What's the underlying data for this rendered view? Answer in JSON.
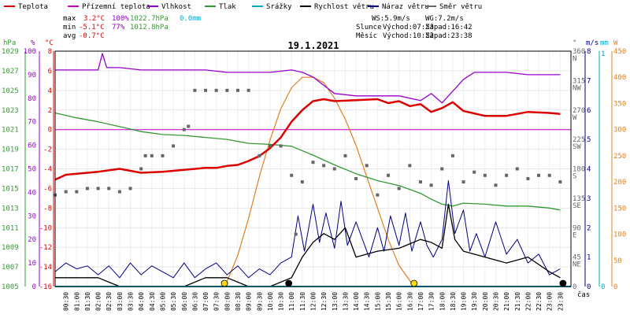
{
  "title": "19.1.2021",
  "x_axis_label": "čas",
  "legend": [
    {
      "label": "Teplota",
      "color": "#dd0000"
    },
    {
      "label": "Přízemní teplota",
      "color": "#cc00cc"
    },
    {
      "label": "Vlhkost",
      "color": "#9900cc"
    },
    {
      "label": "Tlak",
      "color": "#339933"
    },
    {
      "label": "Srážky",
      "color": "#00aacc"
    },
    {
      "label": "Rychlost větru",
      "color": "#000000"
    },
    {
      "label": "Náraz větru",
      "color": "#000080"
    },
    {
      "label": "Směr větru",
      "color": "#666666"
    }
  ],
  "stats": {
    "max": {
      "label": "max",
      "temp": "3.2°C",
      "hum": "100%",
      "press": "1022.7hPa",
      "rain": "0.0mm"
    },
    "min": {
      "label": "min",
      "temp": "-5.1°C",
      "hum": "77%",
      "press": "1012.8hPa"
    },
    "avg": {
      "label": "avg",
      "temp": "-0.7°C"
    }
  },
  "wind_summary": {
    "ws": "WS:5.9m/s",
    "wg": "WG:7.2m/s"
  },
  "sun": {
    "label": "Slunce",
    "rise": "Východ:07:53",
    "set": "Západ:16:42"
  },
  "moon": {
    "label": "Měsíc",
    "rise": "Východ:10:52",
    "set": "Západ:23:38"
  },
  "axes": {
    "left_units": [
      "hPa",
      "%",
      "°C"
    ],
    "right_units": [
      "°",
      "m/s",
      "mm",
      "W"
    ],
    "pressure_ticks": [
      "1029",
      "1027",
      "1025",
      "1023",
      "1021",
      "1019",
      "1017",
      "1015",
      "1013",
      "1011",
      "1009",
      "1007",
      "1005"
    ],
    "humidity_ticks": [
      "100",
      "90",
      "80",
      "70",
      "60",
      "50",
      "40",
      "30",
      "20",
      "10",
      "0"
    ],
    "temp_ticks": [
      "8",
      "6",
      "4",
      "2",
      "0",
      "-2",
      "-4",
      "-6",
      "-8",
      "-10",
      "-12",
      "-14",
      "-16"
    ],
    "direction_ticks": [
      {
        "deg": "360",
        "dir": "N"
      },
      {
        "deg": "315",
        "dir": "NW"
      },
      {
        "deg": "270",
        "dir": "W"
      },
      {
        "deg": "225",
        "dir": "SW"
      },
      {
        "deg": "180",
        "dir": "S"
      },
      {
        "deg": "135",
        "dir": "SE"
      },
      {
        "deg": "90",
        "dir": "E"
      },
      {
        "deg": "45",
        "dir": "NE"
      },
      {
        "deg": "0",
        "dir": ""
      }
    ],
    "wind_ticks": [
      "8",
      "7",
      "6",
      "5",
      "4",
      "3",
      "2",
      "1",
      "0"
    ],
    "rain_ticks": [
      "1",
      "0"
    ],
    "solar_ticks": [
      "450",
      "400",
      "350",
      "300",
      "250",
      "200",
      "150",
      "100",
      "50",
      "0"
    ],
    "time_ticks": [
      "00:30",
      "01:00",
      "01:30",
      "02:00",
      "02:30",
      "03:00",
      "03:30",
      "04:00",
      "04:30",
      "05:00",
      "05:30",
      "06:00",
      "06:30",
      "07:00",
      "07:30",
      "08:00",
      "08:30",
      "09:00",
      "09:30",
      "10:00",
      "10:30",
      "11:00",
      "11:30",
      "12:00",
      "12:30",
      "13:00",
      "13:30",
      "14:00",
      "14:30",
      "15:00",
      "15:30",
      "16:00",
      "16:30",
      "17:00",
      "17:30",
      "18:00",
      "18:30",
      "19:00",
      "19:30",
      "20:00",
      "20:30",
      "21:00",
      "21:30",
      "22:00",
      "22:30",
      "23:00",
      "23:30"
    ]
  },
  "chart_data": {
    "type": "line",
    "title": "19.1.2021",
    "x_unit": "hours",
    "xlim": [
      0,
      24
    ],
    "temp_ylim": [
      -16,
      8
    ],
    "humidity_ylim": [
      0,
      100
    ],
    "pressure_ylim": [
      1005,
      1029
    ],
    "wind_ylim": [
      0,
      8
    ],
    "direction_ylim": [
      0,
      360
    ],
    "solar_ylim": [
      0,
      450
    ],
    "series": [
      {
        "name": "Teplota",
        "axis": "temp",
        "color": "#dd0000",
        "x": [
          0,
          0.5,
          1,
          2,
          3,
          4,
          5,
          6,
          7,
          7.5,
          8,
          8.5,
          9,
          9.5,
          10,
          10.5,
          11,
          11.5,
          12,
          12.5,
          13,
          14,
          15,
          15.5,
          16,
          16.5,
          17,
          17.5,
          18,
          18.5,
          19,
          20,
          21,
          22,
          23,
          23.5
        ],
        "y": [
          -5.1,
          -4.6,
          -4.5,
          -4.3,
          -4.0,
          -4.4,
          -4.3,
          -4.1,
          -3.9,
          -3.9,
          -3.7,
          -3.6,
          -3.2,
          -2.7,
          -1.9,
          -0.8,
          0.8,
          2.0,
          2.9,
          3.1,
          2.9,
          3.0,
          3.1,
          2.7,
          2.9,
          2.4,
          2.6,
          1.8,
          2.2,
          2.8,
          1.9,
          1.4,
          1.4,
          1.8,
          1.7,
          1.6
        ]
      },
      {
        "name": "Přízemní teplota",
        "axis": "temp",
        "color": "#cc00cc",
        "x": [
          0,
          24
        ],
        "y": [
          0,
          0
        ]
      },
      {
        "name": "Vlhkost",
        "axis": "humidity",
        "color": "#9900cc",
        "x": [
          0,
          1,
          2,
          2.2,
          2.4,
          3,
          4,
          5,
          6,
          7,
          8,
          9,
          10,
          11,
          11.5,
          12,
          13,
          14,
          15,
          16,
          17,
          17.5,
          18,
          18.5,
          19,
          19.5,
          20,
          21,
          22,
          23,
          23.5
        ],
        "y": [
          92,
          92,
          92,
          99,
          93,
          93,
          92,
          92,
          92,
          92,
          91,
          91,
          91,
          92,
          91,
          89,
          82,
          81,
          81,
          81,
          79,
          82,
          78,
          83,
          88,
          91,
          91,
          91,
          90,
          90,
          90
        ]
      },
      {
        "name": "Tlak",
        "axis": "pressure",
        "color": "#339933",
        "x": [
          0,
          1,
          2,
          3,
          4,
          5,
          6,
          7,
          8,
          9,
          10,
          11,
          12,
          13,
          14,
          15,
          16,
          17,
          17.5,
          18,
          18.5,
          19,
          20,
          21,
          22,
          23,
          23.5
        ],
        "y": [
          1022.7,
          1022.2,
          1021.8,
          1021.3,
          1020.8,
          1020.5,
          1020.4,
          1020.2,
          1020.0,
          1019.6,
          1019.5,
          1019.3,
          1018.4,
          1017.4,
          1016.5,
          1015.8,
          1015.3,
          1014.5,
          1013.9,
          1013.4,
          1013.2,
          1013.5,
          1013.4,
          1013.2,
          1013.2,
          1013.0,
          1012.8
        ]
      },
      {
        "name": "Srážky",
        "axis": "rain",
        "color": "#00aacc",
        "x": [
          0,
          24
        ],
        "y": [
          0,
          0
        ]
      },
      {
        "name": "Rychlost větru",
        "axis": "wind",
        "color": "#000000",
        "x": [
          0,
          1,
          2,
          3,
          4,
          5,
          6,
          7,
          8,
          9,
          10,
          11,
          11.5,
          12,
          12.5,
          13,
          13.5,
          14,
          15,
          16,
          17,
          17.5,
          18,
          18.3,
          18.6,
          19,
          20,
          21,
          22,
          23,
          23.5
        ],
        "y": [
          0.3,
          0.3,
          0.3,
          0.0,
          0.0,
          0.0,
          0.0,
          0.3,
          0.3,
          0.0,
          0.0,
          0.3,
          1.0,
          1.5,
          1.8,
          1.6,
          2.0,
          1.0,
          1.2,
          1.3,
          1.6,
          1.5,
          1.3,
          2.8,
          1.6,
          1.2,
          1.0,
          0.8,
          1.0,
          0.5,
          0.3
        ]
      },
      {
        "name": "Náraz větru",
        "axis": "wind",
        "color": "#000080",
        "x": [
          0,
          0.5,
          1,
          1.5,
          2,
          2.5,
          3,
          3.5,
          4,
          4.5,
          5,
          5.5,
          6,
          6.5,
          7,
          7.5,
          8,
          8.5,
          9,
          9.5,
          10,
          10.5,
          11,
          11.3,
          11.6,
          12,
          12.3,
          12.6,
          13,
          13.3,
          13.6,
          14,
          14.3,
          14.6,
          15,
          15.3,
          15.6,
          16,
          16.3,
          16.6,
          17,
          17.3,
          17.6,
          18,
          18.3,
          18.6,
          19,
          19.3,
          19.6,
          20,
          20.5,
          21,
          21.5,
          22,
          22.5,
          23,
          23.5
        ],
        "y": [
          0.5,
          0.8,
          0.6,
          0.7,
          0.4,
          0.7,
          0.3,
          0.8,
          0.4,
          0.7,
          0.5,
          0.3,
          0.8,
          0.3,
          0.6,
          0.8,
          0.4,
          0.7,
          0.3,
          0.6,
          0.4,
          0.8,
          1.0,
          2.4,
          1.2,
          2.8,
          1.5,
          2.5,
          1.3,
          2.9,
          1.4,
          2.2,
          1.6,
          1.0,
          2.0,
          1.2,
          2.4,
          1.4,
          2.5,
          1.2,
          2.2,
          1.4,
          1.0,
          1.6,
          3.6,
          1.8,
          2.6,
          1.2,
          1.8,
          1.0,
          2.2,
          1.1,
          1.6,
          0.8,
          1.1,
          0.4,
          0.6
        ]
      },
      {
        "name": "Směr větru",
        "axis": "direction",
        "color": "#666666",
        "x": [
          0,
          0.5,
          1,
          1.5,
          2,
          2.5,
          3,
          3.5,
          4,
          4.2,
          4.5,
          5,
          5.5,
          6,
          6.2,
          6.5,
          7,
          7.5,
          8,
          8.5,
          9,
          9.5,
          10,
          10.5,
          11,
          11.2,
          11.5,
          12,
          12.5,
          13,
          13.5,
          14,
          14.5,
          15,
          15.5,
          16,
          16.5,
          17,
          17.5,
          18,
          18.5,
          19,
          19.5,
          20,
          20.5,
          21,
          21.5,
          22,
          22.5,
          23,
          23.5
        ],
        "y": [
          140,
          145,
          145,
          150,
          150,
          150,
          145,
          150,
          180,
          200,
          200,
          200,
          215,
          240,
          245,
          300,
          300,
          300,
          300,
          300,
          300,
          200,
          215,
          215,
          170,
          80,
          160,
          190,
          185,
          180,
          200,
          165,
          185,
          140,
          170,
          150,
          185,
          160,
          155,
          180,
          200,
          160,
          175,
          170,
          155,
          170,
          180,
          165,
          170,
          170,
          160
        ]
      },
      {
        "name": "Solar",
        "axis": "solar",
        "color": "#e08020",
        "x": [
          7.9,
          8.5,
          9,
          9.5,
          10,
          10.5,
          11,
          11.5,
          12,
          12.5,
          13,
          13.5,
          14,
          14.5,
          15,
          15.5,
          16,
          16.7
        ],
        "y": [
          0,
          60,
          130,
          210,
          280,
          340,
          380,
          400,
          400,
          390,
          360,
          320,
          270,
          210,
          150,
          90,
          40,
          0
        ]
      }
    ],
    "markers": [
      {
        "name": "sunrise",
        "x": 7.88,
        "color": "#ffdd00"
      },
      {
        "name": "sunset",
        "x": 16.7,
        "color": "#ffdd00"
      },
      {
        "name": "moonrise",
        "x": 10.87,
        "color": "#000000"
      },
      {
        "name": "moonset",
        "x": 23.63,
        "color": "#000000"
      }
    ]
  }
}
